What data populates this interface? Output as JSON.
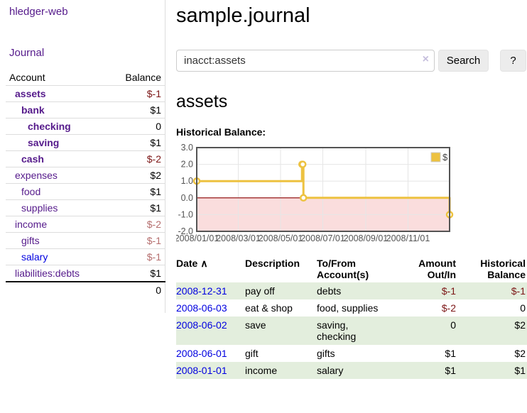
{
  "app": {
    "title": "hledger-web"
  },
  "nav": {
    "journal_label": "Journal"
  },
  "sidebar": {
    "header": {
      "account": "Account",
      "balance": "Balance"
    },
    "accounts": [
      {
        "name": "assets",
        "balance": "$-1",
        "depth": 1
      },
      {
        "name": "bank",
        "balance": "$1",
        "depth": 2
      },
      {
        "name": "checking",
        "balance": "0",
        "depth": 3
      },
      {
        "name": "saving",
        "balance": "$1",
        "depth": 3
      },
      {
        "name": "cash",
        "balance": "$-2",
        "depth": 2
      },
      {
        "name": "expenses",
        "balance": "$2",
        "depth": 1
      },
      {
        "name": "food",
        "balance": "$1",
        "depth": 2
      },
      {
        "name": "supplies",
        "balance": "$1",
        "depth": 2
      },
      {
        "name": "income",
        "balance": "$-2",
        "depth": 1
      },
      {
        "name": "gifts",
        "balance": "$-1",
        "depth": 2
      },
      {
        "name": "salary",
        "balance": "$-1",
        "depth": 2
      },
      {
        "name": "liabilities:debts",
        "balance": "$1",
        "depth": 1
      }
    ],
    "total": "0"
  },
  "main": {
    "title": "sample.journal",
    "search": {
      "value": "inacct:assets",
      "clear_icon": "×",
      "button": "Search",
      "help_button": "?"
    },
    "account_heading": "assets",
    "register": {
      "headers": {
        "date": "Date",
        "sort_icon": "∧",
        "description": "Description",
        "accounts": "To/From Account(s)",
        "amount": "Amount Out/In",
        "balance": "Historical Balance"
      },
      "rows": [
        {
          "date": "2008-12-31",
          "description": "pay off",
          "accounts": "debts",
          "amount": "$-1",
          "balance": "$-1"
        },
        {
          "date": "2008-06-03",
          "description": "eat & shop",
          "accounts": "food, supplies",
          "amount": "$-2",
          "balance": "0"
        },
        {
          "date": "2008-06-02",
          "description": "save",
          "accounts": "saving, checking",
          "amount": "0",
          "balance": "$2"
        },
        {
          "date": "2008-06-01",
          "description": "gift",
          "accounts": "gifts",
          "amount": "$1",
          "balance": "$2"
        },
        {
          "date": "2008-01-01",
          "description": "income",
          "accounts": "salary",
          "amount": "$1",
          "balance": "$1"
        }
      ]
    }
  },
  "chart_data": {
    "type": "line",
    "title": "Historical Balance:",
    "step": true,
    "series": [
      {
        "name": "$",
        "points": [
          [
            "2008-01-01",
            1
          ],
          [
            "2008-06-01",
            2
          ],
          [
            "2008-06-02",
            2
          ],
          [
            "2008-06-03",
            0
          ],
          [
            "2008-12-31",
            -1
          ]
        ]
      }
    ],
    "xlim": [
      "2008-01-01",
      "2008-12-31"
    ],
    "ylim": [
      -2,
      3
    ],
    "x_ticks": [
      "2008/01/01",
      "2008/03/01",
      "2008/05/01",
      "2008/07/01",
      "2008/09/01",
      "2008/11/01"
    ],
    "y_ticks": [
      3.0,
      2.0,
      1.0,
      0.0,
      -1.0,
      -2.0
    ],
    "legend": "$",
    "legend_position": "top-right",
    "grid": true
  },
  "colors": {
    "link_purple": "#551a8b",
    "link_blue": "#0000e0",
    "negative_strong": "#7c1616",
    "negative_soft": "#b56e6e",
    "row_green": "#e3eedd",
    "chart_line": "#edc240",
    "chart_negative_fill": "#fadddd",
    "chart_zero_line": "#8b0000",
    "chart_border": "#545454",
    "chart_grid": "#e6e6e6"
  }
}
